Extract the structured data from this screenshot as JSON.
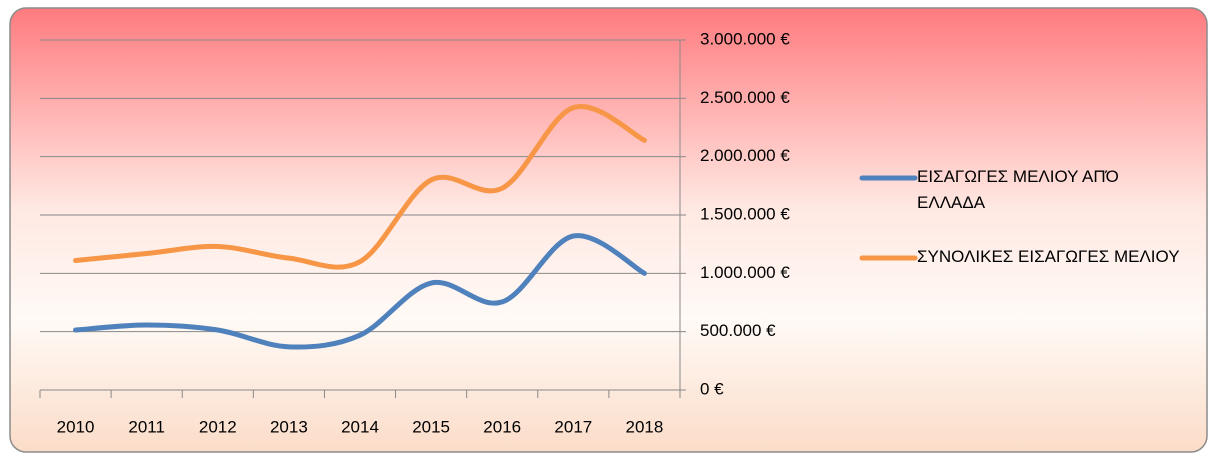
{
  "chart_data": {
    "type": "line",
    "categories": [
      "2010",
      "2011",
      "2012",
      "2013",
      "2014",
      "2015",
      "2016",
      "2017",
      "2018"
    ],
    "series": [
      {
        "name": "ΕΙΣΑΓΩΓΕΣ ΜΕΛΙΟΥ ΑΠΌ ΕΛΛΑΔΑ",
        "color": "#4f81bd",
        "values": [
          514000,
          557000,
          514000,
          370000,
          470000,
          917000,
          755000,
          1320000,
          1000000
        ]
      },
      {
        "name": "ΣΥΝΟΛΙΚΕΣ ΕΙΣΑΓΩΓΕΣ ΜΕΛΙΟΥ",
        "color": "#f79646",
        "values": [
          1110000,
          1170000,
          1230000,
          1130000,
          1100000,
          1800000,
          1730000,
          2420000,
          2140000
        ]
      }
    ],
    "ylim": [
      0,
      3000000
    ],
    "yticks": [
      {
        "value": 0,
        "label": "0 €"
      },
      {
        "value": 500000,
        "label": "500.000 €"
      },
      {
        "value": 1000000,
        "label": "1.000.000 €"
      },
      {
        "value": 1500000,
        "label": "1.500.000 €"
      },
      {
        "value": 2000000,
        "label": "2.000.000 €"
      },
      {
        "value": 2500000,
        "label": "2.500.000 €"
      },
      {
        "value": 3000000,
        "label": "3.000.000 €"
      }
    ],
    "grid": true,
    "legend": "right"
  }
}
